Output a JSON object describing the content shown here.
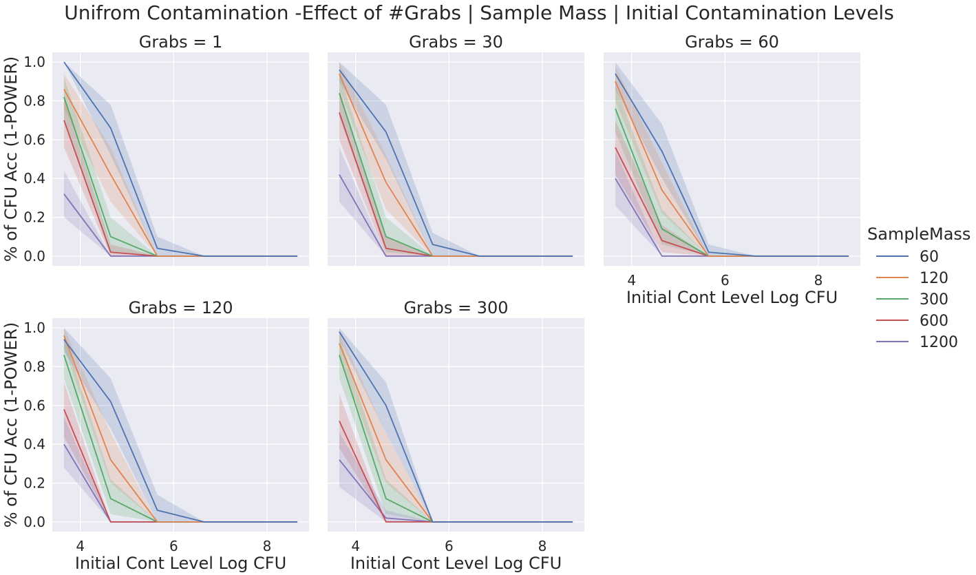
{
  "figure": {
    "suptitle": "Unifrom Contamination -Effect of  #Grabs | Sample Mass | Initial Contamination Levels",
    "legend_title": "SampleMass"
  },
  "chart_data": {
    "type": "line",
    "facet_variable": "Grabs",
    "xlabel": "Initial Cont Level Log CFU",
    "ylabel": "% of CFU Acc (1-POWER)",
    "x": [
      3.65,
      4.65,
      5.65,
      6.65,
      7.65,
      8.65
    ],
    "xlim": [
      3.4,
      8.9
    ],
    "ylim": [
      -0.05,
      1.05
    ],
    "xticks": [
      4,
      6,
      8
    ],
    "yticks": [
      0.0,
      0.2,
      0.4,
      0.6,
      0.8,
      1.0
    ],
    "ytick_labels": [
      "0.0",
      "0.2",
      "0.4",
      "0.6",
      "0.8",
      "1.0"
    ],
    "grid": true,
    "legend_placement": "right",
    "series_meta": [
      {
        "name": "60",
        "color": "#4c72b0"
      },
      {
        "name": "120",
        "color": "#dd8452"
      },
      {
        "name": "300",
        "color": "#55a868"
      },
      {
        "name": "600",
        "color": "#c44e52"
      },
      {
        "name": "1200",
        "color": "#8172b3"
      }
    ],
    "panels": [
      {
        "title": "Grabs = 1",
        "series": [
          {
            "name": "60",
            "values": [
              1.0,
              0.66,
              0.04,
              0.0,
              0.0,
              0.0
            ],
            "lower": [
              1.0,
              0.52,
              0.0,
              0.0,
              0.0,
              0.0
            ],
            "upper": [
              1.0,
              0.78,
              0.1,
              0.0,
              0.0,
              0.0
            ]
          },
          {
            "name": "120",
            "values": [
              0.86,
              0.42,
              0.0,
              0.0,
              0.0,
              0.0
            ],
            "lower": [
              0.76,
              0.28,
              0.0,
              0.0,
              0.0,
              0.0
            ],
            "upper": [
              0.94,
              0.56,
              0.0,
              0.0,
              0.0,
              0.0
            ]
          },
          {
            "name": "300",
            "values": [
              0.82,
              0.1,
              0.0,
              0.0,
              0.0,
              0.0
            ],
            "lower": [
              0.7,
              0.02,
              0.0,
              0.0,
              0.0,
              0.0
            ],
            "upper": [
              0.92,
              0.2,
              0.0,
              0.0,
              0.0,
              0.0
            ]
          },
          {
            "name": "600",
            "values": [
              0.7,
              0.02,
              0.0,
              0.0,
              0.0,
              0.0
            ],
            "lower": [
              0.56,
              0.0,
              0.0,
              0.0,
              0.0,
              0.0
            ],
            "upper": [
              0.82,
              0.06,
              0.0,
              0.0,
              0.0,
              0.0
            ]
          },
          {
            "name": "1200",
            "values": [
              0.32,
              0.0,
              0.0,
              0.0,
              0.0,
              0.0
            ],
            "lower": [
              0.2,
              0.0,
              0.0,
              0.0,
              0.0,
              0.0
            ],
            "upper": [
              0.44,
              0.0,
              0.0,
              0.0,
              0.0,
              0.0
            ]
          }
        ]
      },
      {
        "title": "Grabs = 30",
        "series": [
          {
            "name": "60",
            "values": [
              0.96,
              0.64,
              0.06,
              0.0,
              0.0,
              0.0
            ],
            "lower": [
              0.9,
              0.5,
              0.0,
              0.0,
              0.0,
              0.0
            ],
            "upper": [
              1.0,
              0.78,
              0.12,
              0.0,
              0.0,
              0.0
            ]
          },
          {
            "name": "120",
            "values": [
              0.94,
              0.38,
              0.0,
              0.0,
              0.0,
              0.0
            ],
            "lower": [
              0.86,
              0.24,
              0.0,
              0.0,
              0.0,
              0.0
            ],
            "upper": [
              1.0,
              0.52,
              0.0,
              0.0,
              0.0,
              0.0
            ]
          },
          {
            "name": "300",
            "values": [
              0.84,
              0.1,
              0.0,
              0.0,
              0.0,
              0.0
            ],
            "lower": [
              0.72,
              0.02,
              0.0,
              0.0,
              0.0,
              0.0
            ],
            "upper": [
              0.94,
              0.2,
              0.0,
              0.0,
              0.0,
              0.0
            ]
          },
          {
            "name": "600",
            "values": [
              0.74,
              0.04,
              0.0,
              0.0,
              0.0,
              0.0
            ],
            "lower": [
              0.6,
              0.0,
              0.0,
              0.0,
              0.0,
              0.0
            ],
            "upper": [
              0.86,
              0.1,
              0.0,
              0.0,
              0.0,
              0.0
            ]
          },
          {
            "name": "1200",
            "values": [
              0.42,
              0.0,
              0.0,
              0.0,
              0.0,
              0.0
            ],
            "lower": [
              0.28,
              0.0,
              0.0,
              0.0,
              0.0,
              0.0
            ],
            "upper": [
              0.56,
              0.0,
              0.0,
              0.0,
              0.0,
              0.0
            ]
          }
        ]
      },
      {
        "title": "Grabs = 60",
        "series": [
          {
            "name": "60",
            "values": [
              0.94,
              0.54,
              0.02,
              0.0,
              0.0,
              0.0
            ],
            "lower": [
              0.86,
              0.4,
              0.0,
              0.0,
              0.0,
              0.0
            ],
            "upper": [
              1.0,
              0.68,
              0.06,
              0.0,
              0.0,
              0.0
            ]
          },
          {
            "name": "120",
            "values": [
              0.9,
              0.34,
              0.0,
              0.0,
              0.0,
              0.0
            ],
            "lower": [
              0.8,
              0.22,
              0.0,
              0.0,
              0.0,
              0.0
            ],
            "upper": [
              0.98,
              0.48,
              0.0,
              0.0,
              0.0,
              0.0
            ]
          },
          {
            "name": "300",
            "values": [
              0.76,
              0.14,
              0.0,
              0.0,
              0.0,
              0.0
            ],
            "lower": [
              0.64,
              0.06,
              0.0,
              0.0,
              0.0,
              0.0
            ],
            "upper": [
              0.88,
              0.24,
              0.0,
              0.0,
              0.0,
              0.0
            ]
          },
          {
            "name": "600",
            "values": [
              0.56,
              0.08,
              0.0,
              0.0,
              0.0,
              0.0
            ],
            "lower": [
              0.42,
              0.02,
              0.0,
              0.0,
              0.0,
              0.0
            ],
            "upper": [
              0.7,
              0.16,
              0.0,
              0.0,
              0.0,
              0.0
            ]
          },
          {
            "name": "1200",
            "values": [
              0.4,
              0.0,
              0.0,
              0.0,
              0.0,
              0.0
            ],
            "lower": [
              0.26,
              0.0,
              0.0,
              0.0,
              0.0,
              0.0
            ],
            "upper": [
              0.54,
              0.0,
              0.0,
              0.0,
              0.0,
              0.0
            ]
          }
        ]
      },
      {
        "title": "Grabs = 120",
        "series": [
          {
            "name": "60",
            "values": [
              0.94,
              0.62,
              0.06,
              0.0,
              0.0,
              0.0
            ],
            "lower": [
              0.88,
              0.48,
              0.0,
              0.0,
              0.0,
              0.0
            ],
            "upper": [
              1.0,
              0.74,
              0.14,
              0.0,
              0.0,
              0.0
            ]
          },
          {
            "name": "120",
            "values": [
              0.96,
              0.32,
              0.0,
              0.0,
              0.0,
              0.0
            ],
            "lower": [
              0.9,
              0.2,
              0.0,
              0.0,
              0.0,
              0.0
            ],
            "upper": [
              1.0,
              0.46,
              0.0,
              0.0,
              0.0,
              0.0
            ]
          },
          {
            "name": "300",
            "values": [
              0.86,
              0.12,
              0.0,
              0.0,
              0.0,
              0.0
            ],
            "lower": [
              0.74,
              0.04,
              0.0,
              0.0,
              0.0,
              0.0
            ],
            "upper": [
              0.96,
              0.22,
              0.0,
              0.0,
              0.0,
              0.0
            ]
          },
          {
            "name": "600",
            "values": [
              0.58,
              0.0,
              0.0,
              0.0,
              0.0,
              0.0
            ],
            "lower": [
              0.44,
              0.0,
              0.0,
              0.0,
              0.0,
              0.0
            ],
            "upper": [
              0.72,
              0.0,
              0.0,
              0.0,
              0.0,
              0.0
            ]
          },
          {
            "name": "1200",
            "values": [
              0.4,
              0.0,
              0.0,
              0.0,
              0.0,
              0.0
            ],
            "lower": [
              0.28,
              0.0,
              0.0,
              0.0,
              0.0,
              0.0
            ],
            "upper": [
              0.54,
              0.0,
              0.0,
              0.0,
              0.0,
              0.0
            ]
          }
        ]
      },
      {
        "title": "Grabs = 300",
        "series": [
          {
            "name": "60",
            "values": [
              0.98,
              0.6,
              0.0,
              0.0,
              0.0,
              0.0
            ],
            "lower": [
              0.94,
              0.46,
              0.0,
              0.0,
              0.0,
              0.0
            ],
            "upper": [
              1.0,
              0.72,
              0.0,
              0.0,
              0.0,
              0.0
            ]
          },
          {
            "name": "120",
            "values": [
              0.92,
              0.32,
              0.0,
              0.0,
              0.0,
              0.0
            ],
            "lower": [
              0.84,
              0.2,
              0.0,
              0.0,
              0.0,
              0.0
            ],
            "upper": [
              0.98,
              0.46,
              0.0,
              0.0,
              0.0,
              0.0
            ]
          },
          {
            "name": "300",
            "values": [
              0.86,
              0.12,
              0.0,
              0.0,
              0.0,
              0.0
            ],
            "lower": [
              0.74,
              0.04,
              0.0,
              0.0,
              0.0,
              0.0
            ],
            "upper": [
              0.96,
              0.22,
              0.0,
              0.0,
              0.0,
              0.0
            ]
          },
          {
            "name": "600",
            "values": [
              0.52,
              0.0,
              0.0,
              0.0,
              0.0,
              0.0
            ],
            "lower": [
              0.38,
              0.0,
              0.0,
              0.0,
              0.0,
              0.0
            ],
            "upper": [
              0.66,
              0.0,
              0.0,
              0.0,
              0.0,
              0.0
            ]
          },
          {
            "name": "1200",
            "values": [
              0.32,
              0.02,
              0.0,
              0.0,
              0.0,
              0.0
            ],
            "lower": [
              0.18,
              0.0,
              0.0,
              0.0,
              0.0,
              0.0
            ],
            "upper": [
              0.46,
              0.06,
              0.0,
              0.0,
              0.0,
              0.0
            ]
          }
        ]
      }
    ]
  }
}
